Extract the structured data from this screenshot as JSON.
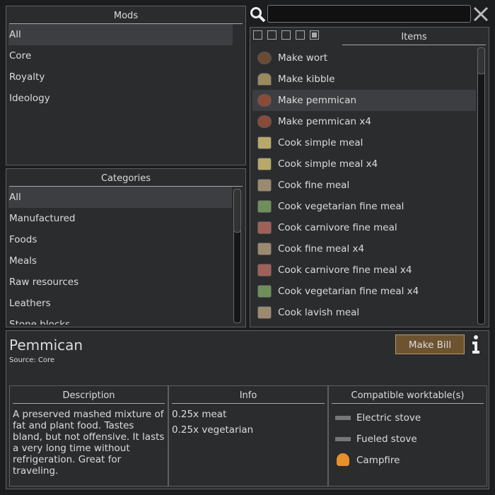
{
  "mods": {
    "title": "Mods",
    "items": [
      "All",
      "Core",
      "Royalty",
      "Ideology"
    ]
  },
  "categories": {
    "title": "Categories",
    "items": [
      "All",
      "Manufactured",
      "Foods",
      "Meals",
      "Raw resources",
      "Leathers",
      "Stone blocks"
    ]
  },
  "items": {
    "title": "Items",
    "items": [
      "Make wort",
      "Make kibble",
      "Make pemmican",
      "Make pemmican x4",
      "Cook simple meal",
      "Cook simple meal x4",
      "Cook fine meal",
      "Cook vegetarian fine meal",
      "Cook carnivore fine meal",
      "Cook fine meal x4",
      "Cook carnivore fine meal x4",
      "Cook vegetarian fine meal x4",
      "Cook lavish meal"
    ]
  },
  "detail": {
    "title": "Pemmican",
    "source": "Source: Core",
    "button": "Make Bill",
    "description": {
      "title": "Description",
      "text": "A preserved mashed mixture of fat and plant food. Tastes bland, but not offensive. It lasts a very long time without refrigeration. Great for traveling."
    },
    "info": {
      "title": "Info",
      "lines": [
        "0.25x meat",
        "0.25x vegetarian"
      ]
    },
    "worktables": {
      "title": "Compatible worktable(s)",
      "items": [
        "Electric stove",
        "Fueled stove",
        "Campfire"
      ]
    }
  }
}
